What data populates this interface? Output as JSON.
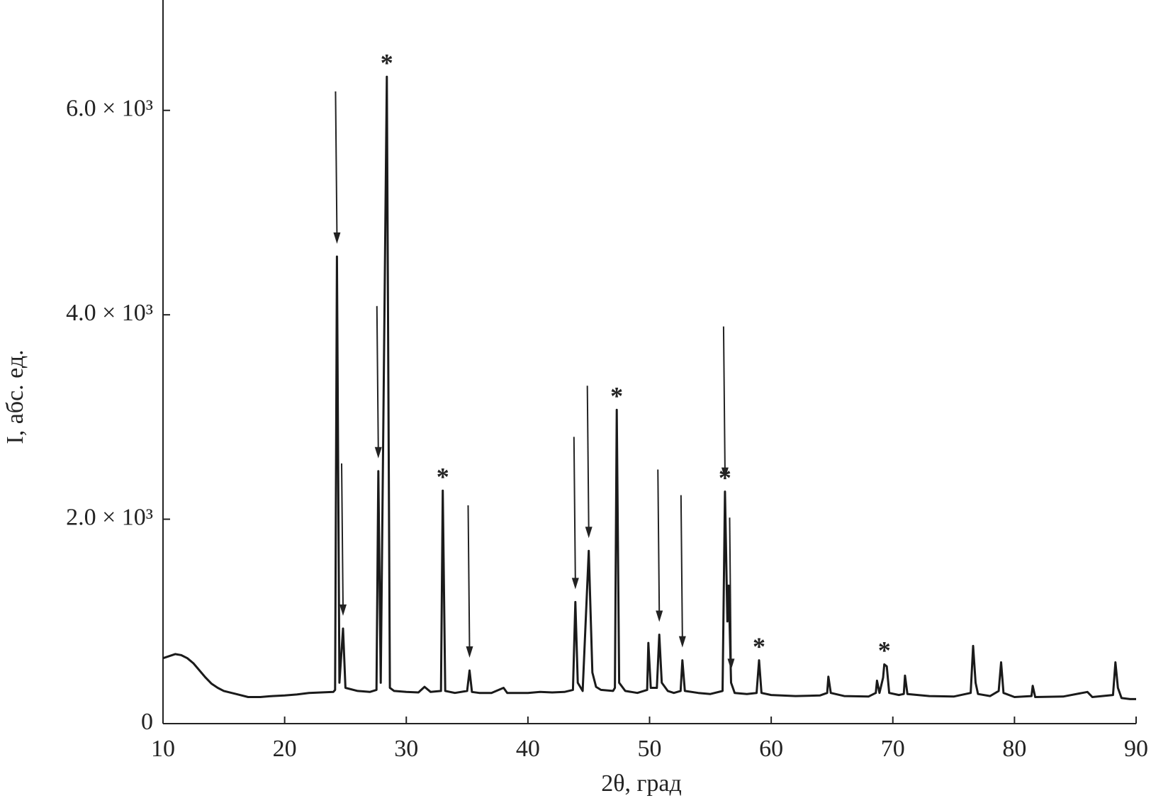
{
  "chart_data": {
    "type": "line",
    "xlabel": "2θ, град",
    "ylabel": "I, абс. ед.",
    "xlim": [
      10,
      90
    ],
    "ylim": [
      0,
      7080
    ],
    "xticks": [
      10,
      20,
      30,
      40,
      50,
      60,
      70,
      80,
      90
    ],
    "yticks": [
      0,
      {
        "value": 2000,
        "label": "2.0 × 10³"
      },
      {
        "value": 4000,
        "label": "4.0 × 10³"
      },
      {
        "value": 6000,
        "label": "6.0 × 10³"
      }
    ],
    "grid": false,
    "color": "#1a1a1a",
    "x": [
      10,
      10.5,
      11,
      11.5,
      12,
      12.5,
      13,
      13.5,
      14,
      14.5,
      15,
      16,
      17,
      18,
      19,
      20,
      21,
      22,
      23,
      24,
      24.15,
      24.3,
      24.5,
      24.8,
      25.0,
      26,
      27,
      27.55,
      27.7,
      27.9,
      28.4,
      28.65,
      29,
      30,
      31,
      31.5,
      32,
      32.85,
      33.0,
      33.2,
      34,
      35.0,
      35.2,
      35.4,
      36,
      37,
      38,
      38.3,
      40,
      41,
      42,
      43,
      43.7,
      43.9,
      44.1,
      44.5,
      45.0,
      45.3,
      45.6,
      46,
      47,
      47.15,
      47.3,
      47.5,
      48,
      49,
      49.8,
      49.9,
      50.1,
      50.6,
      50.8,
      51.0,
      51.5,
      52,
      52.55,
      52.7,
      52.9,
      54,
      55,
      56.0,
      56.2,
      56.4,
      56.5,
      56.7,
      57,
      58,
      58.8,
      59.0,
      59.2,
      60,
      62,
      64,
      64.6,
      64.7,
      64.9,
      66,
      68,
      68.6,
      68.7,
      68.9,
      69.2,
      69.3,
      69.5,
      69.7,
      70.5,
      70.9,
      71.0,
      71.2,
      73,
      75,
      76.4,
      76.6,
      76.8,
      77,
      78,
      78.7,
      78.9,
      79.1,
      80,
      81.4,
      81.5,
      81.7,
      84,
      86.0,
      86.4,
      88.1,
      88.3,
      88.5,
      88.8,
      89.5,
      90
    ],
    "values": [
      640,
      660,
      680,
      670,
      640,
      590,
      520,
      450,
      390,
      350,
      320,
      290,
      260,
      260,
      270,
      275,
      285,
      300,
      305,
      310,
      330,
      4570,
      400,
      930,
      350,
      320,
      310,
      330,
      2470,
      400,
      6330,
      350,
      320,
      310,
      305,
      360,
      310,
      320,
      2280,
      320,
      300,
      320,
      520,
      310,
      300,
      300,
      350,
      300,
      300,
      310,
      305,
      310,
      330,
      1190,
      400,
      320,
      1690,
      500,
      360,
      330,
      320,
      350,
      3070,
      400,
      320,
      300,
      330,
      790,
      350,
      350,
      870,
      400,
      320,
      300,
      320,
      620,
      320,
      300,
      290,
      320,
      2270,
      1000,
      1350,
      400,
      300,
      290,
      300,
      620,
      300,
      280,
      270,
      275,
      300,
      460,
      300,
      270,
      265,
      300,
      420,
      300,
      450,
      580,
      560,
      300,
      280,
      290,
      470,
      290,
      270,
      265,
      300,
      760,
      400,
      290,
      270,
      320,
      600,
      300,
      260,
      270,
      370,
      260,
      265,
      310,
      260,
      280,
      600,
      350,
      250,
      240,
      240
    ],
    "peak_markers": {
      "symbol": "*",
      "x": [
        28.4,
        33.0,
        47.3,
        56.2,
        59.0,
        69.3
      ]
    },
    "arrows_x": [
      24.3,
      24.8,
      27.7,
      35.2,
      43.9,
      45.0,
      50.8,
      52.7,
      56.2,
      56.7
    ]
  }
}
